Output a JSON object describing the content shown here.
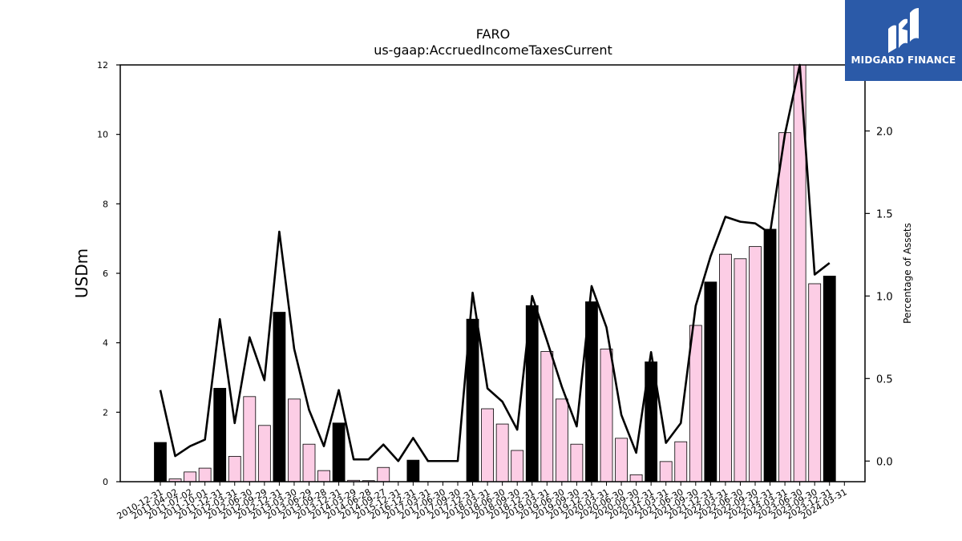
{
  "chart_data": {
    "type": "bar+line",
    "title": "FARO",
    "subtitle": "us-gaap:AccruedIncomeTaxesCurrent",
    "ylabel": "USDm",
    "y2label": "Percentage of Assets",
    "ylim": [
      0,
      12
    ],
    "y2lim": [
      -0.125,
      2.4
    ],
    "yticks": [
      "0",
      "2",
      "4",
      "6",
      "8",
      "10",
      "12"
    ],
    "y2ticks": [
      "0.0",
      "0.5",
      "1.0",
      "1.5",
      "2.0"
    ],
    "categories": [
      "2010-12-31",
      "2011-04-02",
      "2011-07-02",
      "2011-10-01",
      "2011-12-31",
      "2012-03-31",
      "2012-06-30",
      "2012-09-29",
      "2012-12-31",
      "2013-03-30",
      "2013-06-29",
      "2013-09-28",
      "2013-12-31",
      "2014-03-29",
      "2014-06-28",
      "2014-09-27",
      "2015-12-31",
      "2016-12-31",
      "2017-03-31",
      "2017-06-30",
      "2017-09-30",
      "2017-12-31",
      "2018-03-31",
      "2018-06-30",
      "2018-09-30",
      "2018-12-31",
      "2019-03-31",
      "2019-06-30",
      "2019-09-30",
      "2019-12-31",
      "2020-03-31",
      "2020-06-30",
      "2020-09-30",
      "2020-12-31",
      "2021-03-31",
      "2021-06-30",
      "2021-09-30",
      "2021-12-31",
      "2022-03-31",
      "2022-06-30",
      "2022-09-30",
      "2022-12-31",
      "2023-03-31",
      "2023-06-30",
      "2023-09-30",
      "2023-12-31",
      "2024-03-31"
    ],
    "series": [
      {
        "kind": "bar",
        "values": [
          1.13,
          0.08,
          0.28,
          0.39,
          2.69,
          0.73,
          2.45,
          1.62,
          4.88,
          2.38,
          1.08,
          0.32,
          1.69,
          0.04,
          0.03,
          0.41,
          null,
          0.62,
          null,
          null,
          null,
          4.68,
          2.1,
          1.66,
          0.9,
          5.07,
          3.75,
          2.38,
          1.08,
          5.18,
          3.82,
          1.25,
          0.2,
          3.45,
          0.58,
          1.15,
          4.5,
          5.75,
          6.55,
          6.42,
          6.77,
          7.27,
          10.05,
          12.1,
          5.7,
          5.92,
          null
        ],
        "annual": [
          true,
          false,
          false,
          false,
          true,
          false,
          false,
          false,
          true,
          false,
          false,
          false,
          true,
          false,
          false,
          false,
          true,
          true,
          false,
          false,
          false,
          true,
          false,
          false,
          false,
          true,
          false,
          false,
          false,
          true,
          false,
          false,
          false,
          true,
          false,
          false,
          false,
          true,
          false,
          false,
          false,
          true,
          false,
          false,
          false,
          true,
          false
        ],
        "annual_color": "#000000",
        "quarter_color": "#fccde5",
        "edge_color": "#000000"
      },
      {
        "kind": "line",
        "axis": "y2",
        "values": [
          0.43,
          0.03,
          0.09,
          0.13,
          0.86,
          0.23,
          0.75,
          0.49,
          1.39,
          0.68,
          0.31,
          0.09,
          0.43,
          0.01,
          0.01,
          0.1,
          0.0,
          0.14,
          0.0,
          0.0,
          0.0,
          1.02,
          0.44,
          0.36,
          0.19,
          1.0,
          0.73,
          0.45,
          0.21,
          1.06,
          0.81,
          0.28,
          0.05,
          0.66,
          0.11,
          0.23,
          0.94,
          1.24,
          1.48,
          1.45,
          1.44,
          1.38,
          1.98,
          2.45,
          1.13,
          1.2,
          null
        ],
        "color": "#000000"
      }
    ],
    "grid": false,
    "legend": "none"
  },
  "logo": {
    "text": "MIDGARD FINANCE",
    "bg_color": "#2b5aa8"
  }
}
